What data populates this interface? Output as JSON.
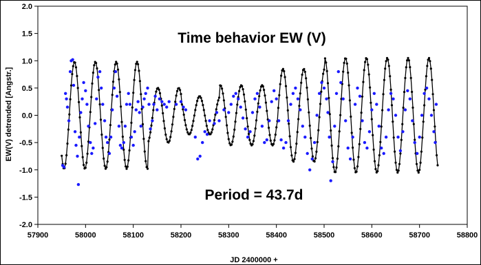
{
  "chart_data": {
    "type": "scatter",
    "title": "Time behavior EW (V)",
    "annotation": "Period = 43.7d",
    "xlabel": "JD 2400000 +",
    "ylabel": "EW(V) detrended [Angstr.]",
    "xlim": [
      57900,
      58800
    ],
    "ylim": [
      -2.0,
      2.0
    ],
    "xticks": [
      57900,
      58000,
      58100,
      58200,
      58300,
      58400,
      58500,
      58600,
      58700,
      58800
    ],
    "yticks": [
      "2.0",
      "1.5",
      "1.0",
      "0.5",
      "0.0",
      "-0.5",
      "-1.0",
      "-1.5",
      "-2.0"
    ],
    "grid": false,
    "colors": {
      "observed": "#1a1aff",
      "model": "#000000"
    },
    "series": [
      {
        "style": "points",
        "points": [
          [
            57952,
            -0.92
          ],
          [
            57955,
            -0.95
          ],
          [
            57958,
            0.4
          ],
          [
            57960,
            0.3
          ],
          [
            57962,
            0.15
          ],
          [
            57965,
            -0.1
          ],
          [
            57968,
            0.8
          ],
          [
            57970,
            1.0
          ],
          [
            57973,
            1.02
          ],
          [
            57975,
            0.55
          ],
          [
            57978,
            -0.3
          ],
          [
            57980,
            -0.55
          ],
          [
            57983,
            -0.75
          ],
          [
            57985,
            -1.27
          ],
          [
            57987,
            -0.4
          ],
          [
            57990,
            0.05
          ],
          [
            57993,
            0.3
          ],
          [
            57996,
            0.6
          ],
          [
            58000,
            0.45
          ],
          [
            58003,
            0.2
          ],
          [
            58006,
            -0.2
          ],
          [
            58010,
            -0.5
          ],
          [
            58013,
            -0.7
          ],
          [
            58016,
            -0.6
          ],
          [
            58020,
            -0.15
          ],
          [
            58023,
            0.3
          ],
          [
            58026,
            0.7
          ],
          [
            58030,
            0.8
          ],
          [
            58033,
            0.5
          ],
          [
            58036,
            0.2
          ],
          [
            58040,
            -0.1
          ],
          [
            58043,
            -0.4
          ],
          [
            58046,
            -0.5
          ],
          [
            58050,
            -0.7
          ],
          [
            58053,
            -0.4
          ],
          [
            58056,
            0.1
          ],
          [
            58060,
            0.5
          ],
          [
            58063,
            0.8
          ],
          [
            58066,
            0.35
          ],
          [
            58070,
            -0.2
          ],
          [
            58073,
            -0.55
          ],
          [
            58076,
            -0.6
          ],
          [
            58080,
            -0.5
          ],
          [
            58083,
            -0.2
          ],
          [
            58086,
            0.2
          ],
          [
            58090,
            0.4
          ],
          [
            58093,
            0.2
          ],
          [
            58096,
            -0.4
          ],
          [
            58100,
            -0.55
          ],
          [
            58103,
            -0.3
          ],
          [
            58106,
            0.1
          ],
          [
            58110,
            0.25
          ],
          [
            58113,
            0.05
          ],
          [
            58116,
            -0.2
          ],
          [
            58120,
            0.15
          ],
          [
            58123,
            0.3
          ],
          [
            58126,
            0.4
          ],
          [
            58130,
            0.5
          ],
          [
            58133,
            0.2
          ],
          [
            58136,
            -0.25
          ],
          [
            58140,
            -0.1
          ],
          [
            58143,
            0.2
          ],
          [
            58146,
            0.35
          ],
          [
            58150,
            0.1
          ],
          [
            58155,
            0.3
          ],
          [
            58160,
            0.25
          ],
          [
            58165,
            0.2
          ],
          [
            58170,
            0.15
          ],
          [
            58175,
            0.25
          ],
          [
            58190,
            0.2
          ],
          [
            58200,
            0.25
          ],
          [
            58205,
            0.15
          ],
          [
            58210,
            0.1
          ],
          [
            58230,
            -0.4
          ],
          [
            58235,
            -0.8
          ],
          [
            58240,
            -0.75
          ],
          [
            58245,
            -0.5
          ],
          [
            58250,
            -0.3
          ],
          [
            58255,
            -0.35
          ],
          [
            58260,
            -0.1
          ],
          [
            58270,
            -0.15
          ],
          [
            58275,
            0.05
          ],
          [
            58280,
            -0.1
          ],
          [
            58290,
            0.1
          ],
          [
            58300,
            0.05
          ],
          [
            58305,
            0.2
          ],
          [
            58310,
            0.35
          ],
          [
            58315,
            0.4
          ],
          [
            58320,
            0.3
          ],
          [
            58325,
            0.15
          ],
          [
            58330,
            -0.05
          ],
          [
            58335,
            -0.25
          ],
          [
            58340,
            -0.4
          ],
          [
            58345,
            -0.3
          ],
          [
            58350,
            0.05
          ],
          [
            58355,
            0.3
          ],
          [
            58360,
            0.4
          ],
          [
            58365,
            0.15
          ],
          [
            58370,
            -0.2
          ],
          [
            58375,
            -0.5
          ],
          [
            58380,
            -0.45
          ],
          [
            58385,
            -0.1
          ],
          [
            58390,
            0.25
          ],
          [
            58395,
            0.45
          ],
          [
            58400,
            0.3
          ],
          [
            58405,
            -0.1
          ],
          [
            58410,
            -0.45
          ],
          [
            58415,
            -0.6
          ],
          [
            58420,
            -0.5
          ],
          [
            58425,
            -0.1
          ],
          [
            58430,
            0.2
          ],
          [
            58435,
            0.4
          ],
          [
            58440,
            0.5
          ],
          [
            58445,
            0.3
          ],
          [
            58450,
            0.1
          ],
          [
            58455,
            -0.2
          ],
          [
            58460,
            -0.4
          ],
          [
            58465,
            -0.7
          ],
          [
            58470,
            -1.0
          ],
          [
            58475,
            -0.8
          ],
          [
            58480,
            -0.5
          ],
          [
            58485,
            0.0
          ],
          [
            58490,
            0.4
          ],
          [
            58495,
            0.6
          ],
          [
            58500,
            0.5
          ],
          [
            58505,
            0.3
          ],
          [
            58508,
            0.05
          ],
          [
            58511,
            -0.4
          ],
          [
            58514,
            -1.2
          ],
          [
            58518,
            -0.85
          ],
          [
            58522,
            -0.2
          ],
          [
            58526,
            0.4
          ],
          [
            58530,
            0.8
          ],
          [
            58535,
            0.6
          ],
          [
            58540,
            0.3
          ],
          [
            58545,
            -0.1
          ],
          [
            58550,
            -0.6
          ],
          [
            58555,
            -0.8
          ],
          [
            58560,
            -0.4
          ],
          [
            58565,
            0.2
          ],
          [
            58570,
            0.5
          ],
          [
            58575,
            0.35
          ],
          [
            58580,
            -0.1
          ],
          [
            58585,
            -0.5
          ],
          [
            58590,
            -0.6
          ],
          [
            58595,
            -0.3
          ],
          [
            58600,
            0.1
          ],
          [
            58605,
            0.4
          ],
          [
            58610,
            0.2
          ],
          [
            58615,
            -0.2
          ],
          [
            58620,
            -0.6
          ],
          [
            58625,
            -0.7
          ],
          [
            58630,
            -0.4
          ],
          [
            58635,
            0.1
          ],
          [
            58640,
            0.4
          ],
          [
            58645,
            0.3
          ],
          [
            58650,
            0.0
          ],
          [
            58655,
            -0.4
          ],
          [
            58660,
            -0.65
          ],
          [
            58665,
            -0.3
          ],
          [
            58670,
            0.1
          ],
          [
            58675,
            0.45
          ],
          [
            58680,
            0.3
          ],
          [
            58685,
            -0.1
          ],
          [
            58690,
            -0.5
          ],
          [
            58695,
            -0.7
          ],
          [
            58700,
            -0.4
          ],
          [
            58705,
            0.0
          ],
          [
            58710,
            0.4
          ],
          [
            58715,
            0.5
          ],
          [
            58720,
            0.3
          ],
          [
            58725,
            0.0
          ],
          [
            58730,
            -0.3
          ],
          [
            58733,
            -0.5
          ],
          [
            58735,
            0.2
          ]
        ]
      },
      {
        "style": "line-with-markers",
        "period": 43.7,
        "x_start": 57950,
        "x_end": 58738,
        "segments": [
          {
            "x0": 57950,
            "x1": 58130,
            "amp": 0.98,
            "phase": 4.0
          },
          {
            "x0": 58130,
            "x1": 58200,
            "amp": 0.5,
            "phase": 4.0
          },
          {
            "x0": 58200,
            "x1": 58280,
            "amp": 0.35,
            "phase": 4.0
          },
          {
            "x0": 58280,
            "x1": 58400,
            "amp": 0.55,
            "phase": 4.0
          },
          {
            "x0": 58400,
            "x1": 58500,
            "amp": 0.85,
            "phase": 4.0
          },
          {
            "x0": 58500,
            "x1": 58738,
            "amp": 1.05,
            "phase": 4.0
          }
        ]
      }
    ]
  }
}
